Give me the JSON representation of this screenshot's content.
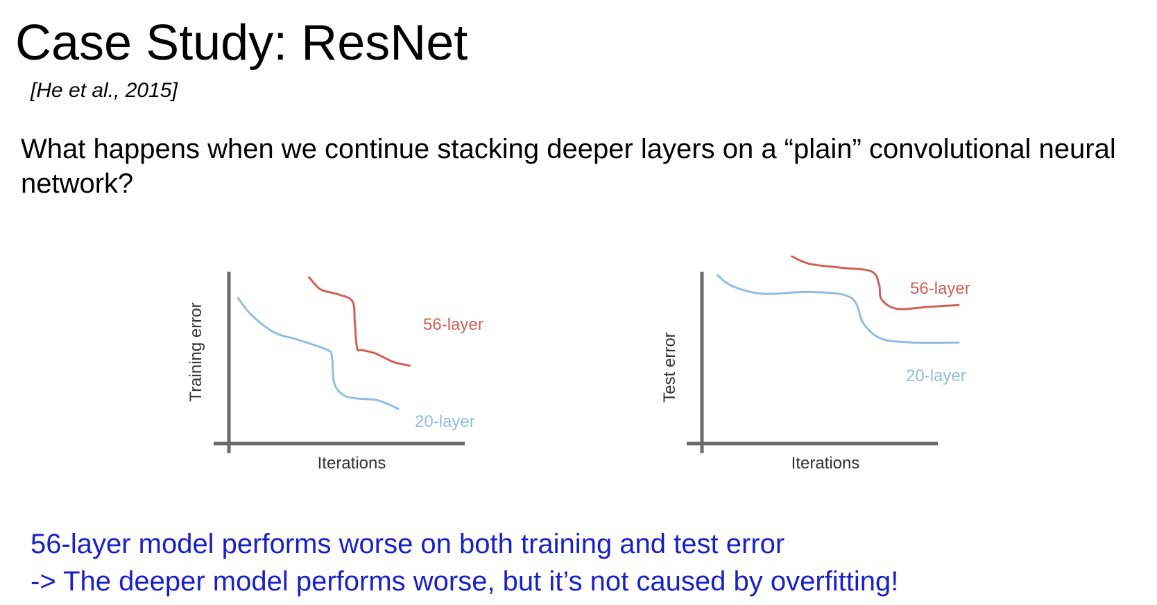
{
  "slide": {
    "title": "Case Study: ResNet",
    "citation": "[He et al., 2015]",
    "question": "What happens when we continue stacking deeper layers on a “plain” convolutional neural network?",
    "conclusion_1": "56-layer model performs worse on both training and test error",
    "conclusion_2": "-> The deeper model performs worse, but it’s not caused by overfitting!"
  },
  "colors": {
    "layer56": "#d0605a",
    "layer20": "#92bde0",
    "axis": "#6b6b6b",
    "conclusion": "#1a20c8"
  },
  "chart_data": [
    {
      "type": "line",
      "xlabel": "Iterations",
      "ylabel": "Training error",
      "grid": false,
      "series": [
        {
          "name": "56-layer",
          "color": "#d0605a",
          "points": [
            [
              0.35,
              0.96
            ],
            [
              0.4,
              0.89
            ],
            [
              0.48,
              0.86
            ],
            [
              0.54,
              0.82
            ],
            [
              0.55,
              0.7
            ],
            [
              0.56,
              0.55
            ],
            [
              0.58,
              0.54
            ],
            [
              0.64,
              0.52
            ],
            [
              0.72,
              0.47
            ],
            [
              0.79,
              0.45
            ]
          ]
        },
        {
          "name": "20-layer",
          "color": "#92bde0",
          "points": [
            [
              0.04,
              0.84
            ],
            [
              0.1,
              0.74
            ],
            [
              0.2,
              0.64
            ],
            [
              0.3,
              0.6
            ],
            [
              0.43,
              0.54
            ],
            [
              0.45,
              0.5
            ],
            [
              0.46,
              0.35
            ],
            [
              0.5,
              0.28
            ],
            [
              0.56,
              0.26
            ],
            [
              0.65,
              0.25
            ],
            [
              0.74,
              0.2
            ]
          ]
        }
      ]
    },
    {
      "type": "line",
      "xlabel": "Iterations",
      "ylabel": "Test error",
      "grid": false,
      "series": [
        {
          "name": "56-layer",
          "color": "#d0605a",
          "points": [
            [
              0.35,
              1.0
            ],
            [
              0.42,
              0.96
            ],
            [
              0.54,
              0.94
            ],
            [
              0.66,
              0.92
            ],
            [
              0.69,
              0.85
            ],
            [
              0.7,
              0.77
            ],
            [
              0.76,
              0.72
            ],
            [
              0.88,
              0.73
            ],
            [
              1.0,
              0.74
            ]
          ]
        },
        {
          "name": "20-layer",
          "color": "#92bde0",
          "points": [
            [
              0.06,
              0.9
            ],
            [
              0.12,
              0.84
            ],
            [
              0.24,
              0.8
            ],
            [
              0.42,
              0.81
            ],
            [
              0.58,
              0.78
            ],
            [
              0.63,
              0.64
            ],
            [
              0.7,
              0.56
            ],
            [
              0.82,
              0.54
            ],
            [
              1.0,
              0.54
            ]
          ]
        }
      ]
    }
  ]
}
